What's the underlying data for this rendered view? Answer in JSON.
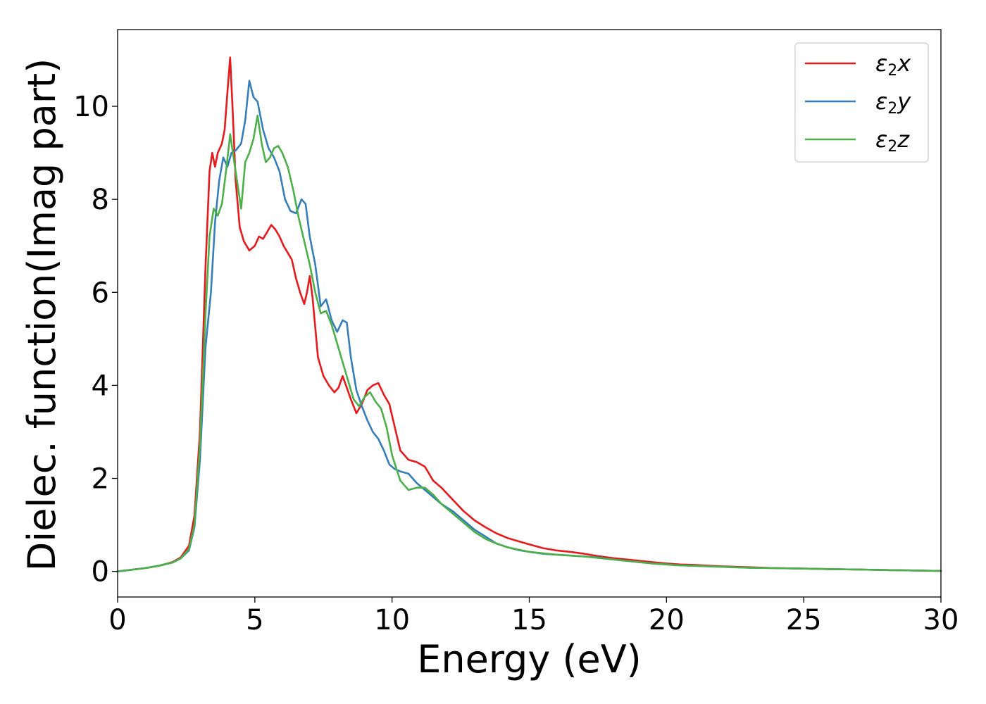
{
  "chart_data": {
    "type": "line",
    "title": "",
    "xlabel": "Energy (eV)",
    "ylabel": "Dielec. function(Imag part)",
    "xlim": [
      0,
      30
    ],
    "ylim": [
      -0.55,
      11.65
    ],
    "xticks": [
      0,
      5,
      10,
      15,
      20,
      25,
      30
    ],
    "xtick_labels": [
      "0",
      "5",
      "10",
      "15",
      "20",
      "25",
      "30"
    ],
    "yticks": [
      0,
      2,
      4,
      6,
      8,
      10
    ],
    "ytick_labels": [
      "0",
      "2",
      "4",
      "6",
      "8",
      "10"
    ],
    "grid": false,
    "legend_position": "top-right",
    "series": [
      {
        "name": "ε2x",
        "legend_main": "ε",
        "legend_sub": "2",
        "legend_suffix": "x",
        "color": "#e41a1c",
        "x": [
          0,
          1,
          1.5,
          2,
          2.3,
          2.6,
          2.8,
          3,
          3.2,
          3.35,
          3.45,
          3.55,
          3.65,
          3.8,
          3.9,
          4.0,
          4.1,
          4.2,
          4.3,
          4.45,
          4.6,
          4.8,
          5.0,
          5.15,
          5.3,
          5.45,
          5.6,
          5.75,
          5.9,
          6.05,
          6.2,
          6.35,
          6.5,
          6.65,
          6.8,
          6.9,
          7.0,
          7.1,
          7.3,
          7.5,
          7.7,
          7.9,
          8.05,
          8.2,
          8.35,
          8.5,
          8.7,
          8.9,
          9.1,
          9.3,
          9.5,
          9.7,
          9.9,
          10.1,
          10.3,
          10.6,
          10.9,
          11.2,
          11.5,
          11.8,
          12.2,
          12.6,
          13,
          13.4,
          13.8,
          14.2,
          14.6,
          15,
          15.5,
          16,
          16.5,
          17,
          17.5,
          18,
          18.5,
          19,
          19.5,
          20,
          20.5,
          21,
          22,
          23,
          24,
          25,
          26,
          27,
          28,
          29,
          30
        ],
        "values": [
          0,
          0.07,
          0.12,
          0.2,
          0.3,
          0.55,
          1.2,
          3.0,
          6.5,
          8.6,
          9.0,
          8.7,
          9.0,
          9.2,
          9.5,
          10.3,
          11.05,
          9.8,
          8.4,
          7.4,
          7.1,
          6.9,
          7.0,
          7.2,
          7.15,
          7.3,
          7.45,
          7.35,
          7.2,
          7.0,
          6.85,
          6.7,
          6.3,
          6.0,
          5.75,
          6.0,
          6.35,
          5.9,
          4.6,
          4.2,
          4.0,
          3.85,
          3.95,
          4.2,
          3.95,
          3.7,
          3.4,
          3.6,
          3.9,
          4.0,
          4.05,
          3.8,
          3.6,
          3.1,
          2.6,
          2.4,
          2.35,
          2.25,
          1.95,
          1.8,
          1.55,
          1.3,
          1.1,
          0.95,
          0.82,
          0.72,
          0.65,
          0.58,
          0.5,
          0.45,
          0.42,
          0.38,
          0.33,
          0.29,
          0.26,
          0.23,
          0.2,
          0.17,
          0.15,
          0.14,
          0.11,
          0.09,
          0.07,
          0.06,
          0.05,
          0.04,
          0.03,
          0.02,
          0.01
        ]
      },
      {
        "name": "ε2y",
        "legend_main": "ε",
        "legend_sub": "2",
        "legend_suffix": "y",
        "color": "#377eb8",
        "x": [
          0,
          1,
          1.5,
          2,
          2.3,
          2.6,
          2.8,
          3,
          3.2,
          3.4,
          3.55,
          3.7,
          3.85,
          4.0,
          4.15,
          4.3,
          4.5,
          4.65,
          4.8,
          4.95,
          5.1,
          5.3,
          5.5,
          5.7,
          5.9,
          6.1,
          6.3,
          6.5,
          6.7,
          6.85,
          7.0,
          7.2,
          7.4,
          7.6,
          7.8,
          8.0,
          8.2,
          8.35,
          8.5,
          8.7,
          8.9,
          9.1,
          9.3,
          9.5,
          9.7,
          9.9,
          10.1,
          10.3,
          10.6,
          10.9,
          11.2,
          11.5,
          11.8,
          12.2,
          12.6,
          13,
          13.4,
          13.8,
          14.2,
          14.6,
          15,
          15.5,
          16,
          16.5,
          17,
          17.5,
          18,
          18.5,
          19,
          19.5,
          20,
          20.5,
          21,
          22,
          23,
          24,
          25,
          26,
          27,
          28,
          29,
          30
        ],
        "values": [
          0,
          0.07,
          0.12,
          0.19,
          0.28,
          0.45,
          0.95,
          2.4,
          4.8,
          6.0,
          7.5,
          8.4,
          8.9,
          8.7,
          9.0,
          9.05,
          9.2,
          9.7,
          10.55,
          10.2,
          10.1,
          9.5,
          9.1,
          8.9,
          8.6,
          8.0,
          7.75,
          7.7,
          8.0,
          7.9,
          7.2,
          6.6,
          5.7,
          5.85,
          5.4,
          5.15,
          5.4,
          5.35,
          4.6,
          3.9,
          3.55,
          3.25,
          3.0,
          2.85,
          2.6,
          2.3,
          2.2,
          2.15,
          2.1,
          1.9,
          1.75,
          1.6,
          1.45,
          1.3,
          1.1,
          0.9,
          0.75,
          0.6,
          0.52,
          0.46,
          0.42,
          0.38,
          0.36,
          0.34,
          0.32,
          0.3,
          0.26,
          0.23,
          0.2,
          0.17,
          0.15,
          0.13,
          0.12,
          0.1,
          0.08,
          0.07,
          0.06,
          0.05,
          0.04,
          0.03,
          0.02,
          0.01
        ]
      },
      {
        "name": "ε2z",
        "legend_main": "ε",
        "legend_sub": "2",
        "legend_suffix": "z",
        "color": "#4daf4a",
        "x": [
          0,
          1,
          1.5,
          2,
          2.3,
          2.6,
          2.8,
          3,
          3.2,
          3.35,
          3.5,
          3.65,
          3.8,
          3.95,
          4.1,
          4.2,
          4.35,
          4.5,
          4.65,
          4.8,
          4.95,
          5.1,
          5.25,
          5.4,
          5.55,
          5.7,
          5.85,
          6.0,
          6.2,
          6.4,
          6.6,
          6.8,
          7.0,
          7.2,
          7.4,
          7.6,
          7.8,
          8.0,
          8.2,
          8.4,
          8.6,
          8.8,
          9.0,
          9.2,
          9.4,
          9.6,
          9.8,
          10.0,
          10.3,
          10.6,
          10.9,
          11.2,
          11.5,
          11.8,
          12.2,
          12.6,
          13,
          13.4,
          13.8,
          14.2,
          14.6,
          15,
          15.5,
          16,
          16.5,
          17,
          17.5,
          18,
          18.5,
          19,
          19.5,
          20,
          20.5,
          21,
          22,
          23,
          24,
          25,
          26,
          27,
          28,
          29,
          30
        ],
        "values": [
          0,
          0.07,
          0.12,
          0.19,
          0.28,
          0.48,
          1.0,
          2.7,
          5.5,
          7.2,
          7.8,
          7.65,
          7.9,
          8.6,
          9.4,
          9.0,
          8.4,
          7.8,
          8.8,
          9.0,
          9.3,
          9.8,
          9.2,
          8.8,
          8.9,
          9.1,
          9.15,
          9.0,
          8.7,
          8.2,
          7.6,
          7.1,
          6.6,
          6.0,
          5.55,
          5.6,
          5.3,
          4.9,
          4.5,
          4.1,
          3.7,
          3.55,
          3.75,
          3.85,
          3.65,
          3.5,
          3.1,
          2.5,
          1.95,
          1.75,
          1.8,
          1.8,
          1.65,
          1.45,
          1.25,
          1.05,
          0.85,
          0.7,
          0.6,
          0.52,
          0.47,
          0.42,
          0.39,
          0.36,
          0.34,
          0.32,
          0.29,
          0.26,
          0.23,
          0.2,
          0.17,
          0.15,
          0.13,
          0.12,
          0.1,
          0.08,
          0.07,
          0.06,
          0.05,
          0.04,
          0.03,
          0.02,
          0.01
        ]
      }
    ]
  }
}
